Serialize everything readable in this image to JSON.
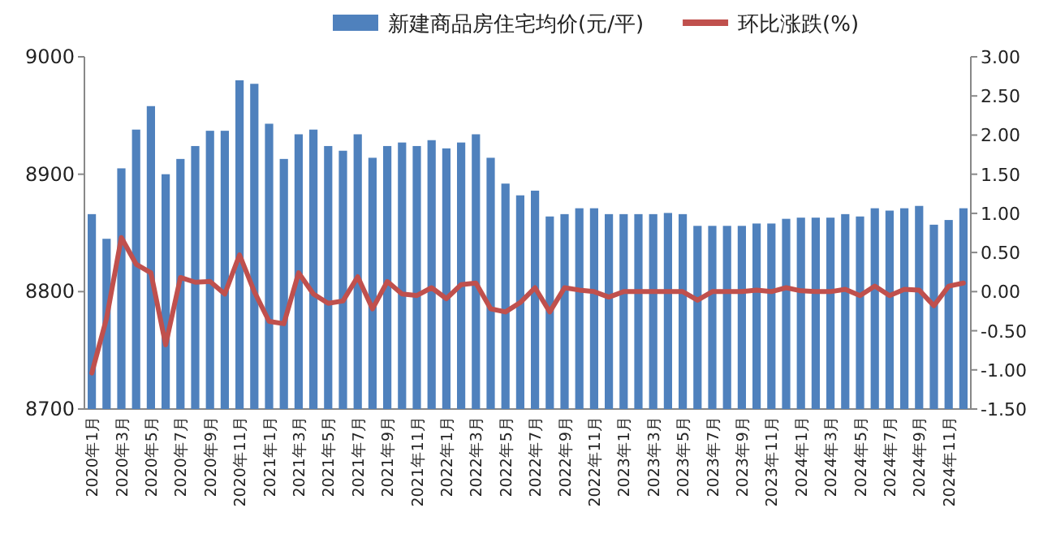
{
  "chart_data": {
    "type": "bar",
    "legend": "top",
    "categories": [
      "2020年1月",
      null,
      "2020年3月",
      null,
      "2020年5月",
      null,
      "2020年7月",
      null,
      "2020年9月",
      null,
      "2020年11月",
      null,
      "2021年1月",
      null,
      "2021年3月",
      null,
      "2021年5月",
      null,
      "2021年7月",
      null,
      "2021年9月",
      null,
      "2021年11月",
      null,
      "2022年1月",
      null,
      "2022年3月",
      null,
      "2022年5月",
      null,
      "2022年7月",
      null,
      "2022年9月",
      null,
      "2022年11月",
      null,
      "2023年1月",
      null,
      "2023年3月",
      null,
      "2023年5月",
      null,
      "2023年7月",
      null,
      "2023年9月",
      null,
      "2023年11月",
      null,
      "2024年1月",
      null,
      "2024年3月",
      null,
      "2024年5月",
      null,
      "2024年7月",
      null,
      "2024年9月",
      null,
      "2024年11月",
      null
    ],
    "series": [
      {
        "name": "新建商品房住宅均价(元/平)",
        "color": "#4f81bd",
        "values": [
          8866,
          8845,
          8905,
          8938,
          8958,
          8900,
          8913,
          8924,
          8937,
          8937,
          8980,
          8977,
          8943,
          8913,
          8934,
          8938,
          8924,
          8920,
          8934,
          8914,
          8924,
          8927,
          8924,
          8929,
          8922,
          8927,
          8934,
          8914,
          8892,
          8882,
          8886,
          8864,
          8866,
          8871,
          8871,
          8866,
          8866,
          8866,
          8866,
          8867,
          8866,
          8856,
          8856,
          8856,
          8856,
          8858,
          8858,
          8862,
          8863,
          8863,
          8863,
          8866,
          8864,
          8871,
          8869,
          8871,
          8873,
          8857,
          8861,
          8871
        ]
      },
      {
        "name": "环比涨跌(%)",
        "type": "line",
        "axis": "y2",
        "color": "#c0504d",
        "values": [
          -1.04,
          -0.34,
          0.69,
          0.35,
          0.24,
          -0.68,
          0.18,
          0.12,
          0.13,
          -0.03,
          0.47,
          0.0,
          -0.38,
          -0.41,
          0.24,
          -0.03,
          -0.15,
          -0.12,
          0.19,
          -0.22,
          0.13,
          -0.03,
          -0.05,
          0.05,
          -0.09,
          0.09,
          0.11,
          -0.22,
          -0.26,
          -0.14,
          0.05,
          -0.26,
          0.05,
          0.02,
          0.0,
          -0.07,
          0.0,
          0.0,
          0.0,
          0.0,
          0.0,
          -0.11,
          0.0,
          0.0,
          0.0,
          0.02,
          0.0,
          0.05,
          0.01,
          0.0,
          0.0,
          0.03,
          -0.05,
          0.07,
          -0.05,
          0.03,
          0.02,
          -0.18,
          0.07,
          0.11
        ]
      }
    ],
    "ylim": [
      8700,
      9000
    ],
    "yticks": [
      8700,
      8800,
      8900,
      9000
    ],
    "y2lim": [
      -1.5,
      3.0
    ],
    "y2ticks": [
      {
        "value": -1.5,
        "label": "-1.50"
      },
      {
        "value": -1.0,
        "label": "-1.00"
      },
      {
        "value": -0.5,
        "label": "-0.50"
      },
      {
        "value": 0,
        "label": "0.00"
      },
      {
        "value": 0.5,
        "label": "0.50"
      },
      {
        "value": 1.0,
        "label": "1.00"
      },
      {
        "value": 1.5,
        "label": "1.50"
      },
      {
        "value": 2.0,
        "label": "2.00"
      },
      {
        "value": 2.5,
        "label": "2.50"
      },
      {
        "value": 3.0,
        "label": "3.00"
      }
    ]
  }
}
